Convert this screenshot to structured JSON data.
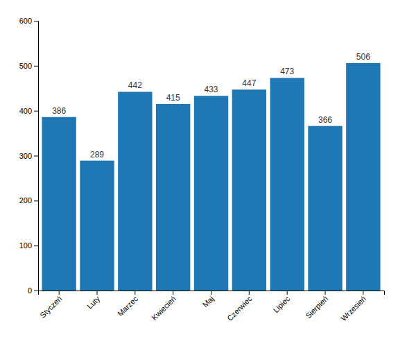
{
  "chart_data": {
    "type": "bar",
    "categories": [
      "Styczeń",
      "Luty",
      "Marzec",
      "Kwiecień",
      "Maj",
      "Czerwiec",
      "Lipiec",
      "Sierpień",
      "Wrzesień"
    ],
    "values": [
      386,
      289,
      442,
      415,
      433,
      447,
      473,
      366,
      506
    ],
    "ylim": [
      0,
      600
    ],
    "yticks": [
      0,
      100,
      200,
      300,
      400,
      500,
      600
    ],
    "grid": false,
    "data_labels": true
  }
}
